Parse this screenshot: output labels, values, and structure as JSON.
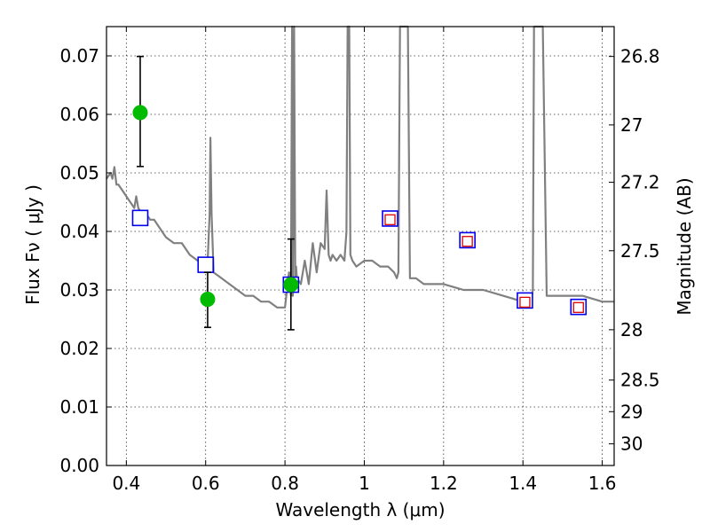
{
  "chart_data": {
    "type": "scatter",
    "title": "",
    "xlabel": "Wavelength  λ (μm)",
    "ylabel": "Flux  Fν  ( μJy )",
    "ylabel_right": "Magnitude (AB)",
    "xlim": [
      0.35,
      1.63
    ],
    "ylim": [
      0.0,
      0.075
    ],
    "grid": true,
    "x_ticks": [
      0.4,
      0.6,
      0.8,
      1.0,
      1.2,
      1.4,
      1.6
    ],
    "x_tick_labels": [
      "0.4",
      "0.6",
      "0.8",
      "1",
      "1.2",
      "1.4",
      "1.6"
    ],
    "y_ticks": [
      0.0,
      0.01,
      0.02,
      0.03,
      0.04,
      0.05,
      0.06,
      0.07
    ],
    "y_tick_labels": [
      "0.00",
      "0.01",
      "0.02",
      "0.03",
      "0.04",
      "0.05",
      "0.06",
      "0.07"
    ],
    "right_ticks": [
      {
        "label": "26.8",
        "flux": 0.0699
      },
      {
        "label": "27",
        "flux": 0.0582
      },
      {
        "label": "27.2",
        "flux": 0.0484
      },
      {
        "label": "27.5",
        "flux": 0.0367
      },
      {
        "label": "28",
        "flux": 0.0232
      },
      {
        "label": "28.5",
        "flux": 0.0146
      },
      {
        "label": "29",
        "flux": 0.0092
      },
      {
        "label": "30",
        "flux": 0.0037
      }
    ],
    "series": [
      {
        "kind": "sed-model-line",
        "color": "#808080",
        "x": [
          0.35,
          0.36,
          0.365,
          0.37,
          0.375,
          0.38,
          0.39,
          0.4,
          0.41,
          0.42,
          0.425,
          0.43,
          0.44,
          0.45,
          0.46,
          0.47,
          0.48,
          0.5,
          0.52,
          0.54,
          0.56,
          0.58,
          0.6,
          0.605,
          0.61,
          0.612,
          0.615,
          0.62,
          0.64,
          0.66,
          0.68,
          0.7,
          0.72,
          0.74,
          0.76,
          0.78,
          0.8,
          0.81,
          0.815,
          0.818,
          0.82,
          0.823,
          0.826,
          0.828,
          0.83,
          0.84,
          0.85,
          0.86,
          0.87,
          0.88,
          0.89,
          0.9,
          0.905,
          0.91,
          0.915,
          0.92,
          0.93,
          0.94,
          0.95,
          0.955,
          0.958,
          0.96,
          0.962,
          0.965,
          0.97,
          0.98,
          1.0,
          1.02,
          1.04,
          1.06,
          1.075,
          1.082,
          1.086,
          1.09,
          1.1,
          1.11,
          1.115,
          1.13,
          1.15,
          1.2,
          1.25,
          1.3,
          1.35,
          1.4,
          1.42,
          1.425,
          1.428,
          1.44,
          1.45,
          1.46,
          1.5,
          1.55,
          1.6,
          1.63
        ],
        "y": [
          0.049,
          0.05,
          0.049,
          0.051,
          0.048,
          0.048,
          0.047,
          0.046,
          0.045,
          0.044,
          0.046,
          0.044,
          0.043,
          0.043,
          0.042,
          0.042,
          0.041,
          0.039,
          0.038,
          0.038,
          0.036,
          0.035,
          0.034,
          0.035,
          0.043,
          0.056,
          0.043,
          0.033,
          0.032,
          0.031,
          0.03,
          0.029,
          0.029,
          0.028,
          0.028,
          0.027,
          0.027,
          0.033,
          0.029,
          0.075,
          0.029,
          0.075,
          0.031,
          0.034,
          0.032,
          0.031,
          0.035,
          0.031,
          0.038,
          0.033,
          0.038,
          0.037,
          0.047,
          0.036,
          0.035,
          0.036,
          0.035,
          0.036,
          0.035,
          0.04,
          0.075,
          0.075,
          0.075,
          0.036,
          0.035,
          0.034,
          0.035,
          0.035,
          0.034,
          0.034,
          0.033,
          0.032,
          0.033,
          0.075,
          0.075,
          0.075,
          0.032,
          0.032,
          0.031,
          0.031,
          0.03,
          0.03,
          0.029,
          0.028,
          0.028,
          0.03,
          0.075,
          0.075,
          0.075,
          0.029,
          0.029,
          0.029,
          0.028,
          0.028
        ]
      },
      {
        "kind": "model-band-flux",
        "marker": "square",
        "color": "#0000ee",
        "x": [
          0.435,
          0.6,
          0.815,
          1.065,
          1.26,
          1.405,
          1.54
        ],
        "y": [
          0.0423,
          0.0343,
          0.0309,
          0.0422,
          0.0385,
          0.0282,
          0.0271
        ]
      },
      {
        "kind": "observed-band-flux",
        "marker": "square",
        "color": "#dd0000",
        "x": [
          1.065,
          1.26,
          1.405,
          1.54
        ],
        "y": [
          0.042,
          0.0383,
          0.0279,
          0.027
        ]
      },
      {
        "kind": "observed-detection",
        "marker": "circle",
        "color": "#00bb00",
        "x": [
          0.435,
          0.605,
          0.815
        ],
        "y": [
          0.0603,
          0.0284,
          0.0309
        ],
        "err_low": [
          0.0511,
          0.0236,
          0.0232
        ],
        "err_high": [
          0.0699,
          0.033,
          0.0387
        ]
      }
    ]
  }
}
